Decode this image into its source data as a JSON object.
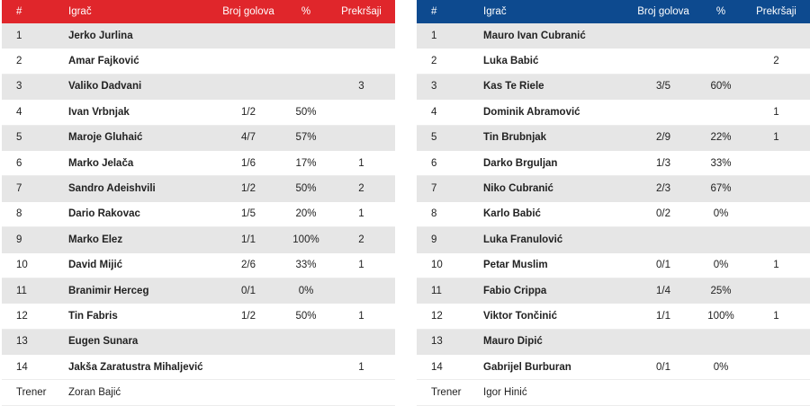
{
  "headers": {
    "num": "#",
    "player": "Igrač",
    "goals": "Broj golova",
    "pct": "%",
    "fouls": "Prekršaji"
  },
  "colors": {
    "home": "#e0262b",
    "away": "#0d4a8f",
    "shade": "#e6e6e6"
  },
  "home": {
    "rows": [
      {
        "num": "1",
        "name": "Jerko Jurlina",
        "goals": "",
        "pct": "",
        "fouls": ""
      },
      {
        "num": "2",
        "name": "Amar Fajković",
        "goals": "",
        "pct": "",
        "fouls": ""
      },
      {
        "num": "3",
        "name": "Valiko Dadvani",
        "goals": "",
        "pct": "",
        "fouls": "3"
      },
      {
        "num": "4",
        "name": "Ivan Vrbnjak",
        "goals": "1/2",
        "pct": "50%",
        "fouls": ""
      },
      {
        "num": "5",
        "name": "Maroje Gluhaić",
        "goals": "4/7",
        "pct": "57%",
        "fouls": ""
      },
      {
        "num": "6",
        "name": "Marko Jelača",
        "goals": "1/6",
        "pct": "17%",
        "fouls": "1"
      },
      {
        "num": "7",
        "name": "Sandro Adeishvili",
        "goals": "1/2",
        "pct": "50%",
        "fouls": "2"
      },
      {
        "num": "8",
        "name": "Dario Rakovac",
        "goals": "1/5",
        "pct": "20%",
        "fouls": "1"
      },
      {
        "num": "9",
        "name": "Marko Elez",
        "goals": "1/1",
        "pct": "100%",
        "fouls": "2"
      },
      {
        "num": "10",
        "name": "David Mijić",
        "goals": "2/6",
        "pct": "33%",
        "fouls": "1"
      },
      {
        "num": "11",
        "name": "Branimir Herceg",
        "goals": "0/1",
        "pct": "0%",
        "fouls": ""
      },
      {
        "num": "12",
        "name": "Tin Fabris",
        "goals": "1/2",
        "pct": "50%",
        "fouls": "1"
      },
      {
        "num": "13",
        "name": "Eugen Sunara",
        "goals": "",
        "pct": "",
        "fouls": ""
      },
      {
        "num": "14",
        "name": "Jakša Zaratustra Mihaljević",
        "goals": "",
        "pct": "",
        "fouls": "1"
      }
    ],
    "coach_label": "Trener",
    "coach_name": "Zoran Bajić"
  },
  "away": {
    "rows": [
      {
        "num": "1",
        "name": "Mauro Ivan Čubranić",
        "goals": "",
        "pct": "",
        "fouls": ""
      },
      {
        "num": "2",
        "name": "Luka Babić",
        "goals": "",
        "pct": "",
        "fouls": "2"
      },
      {
        "num": "3",
        "name": "Kas Te Riele",
        "goals": "3/5",
        "pct": "60%",
        "fouls": ""
      },
      {
        "num": "4",
        "name": "Dominik Abramović",
        "goals": "",
        "pct": "",
        "fouls": "1"
      },
      {
        "num": "5",
        "name": "Tin Brubnjak",
        "goals": "2/9",
        "pct": "22%",
        "fouls": "1"
      },
      {
        "num": "6",
        "name": "Darko Brguljan",
        "goals": "1/3",
        "pct": "33%",
        "fouls": ""
      },
      {
        "num": "7",
        "name": "Niko Čubranić",
        "goals": "2/3",
        "pct": "67%",
        "fouls": ""
      },
      {
        "num": "8",
        "name": "Karlo Babić",
        "goals": "0/2",
        "pct": "0%",
        "fouls": ""
      },
      {
        "num": "9",
        "name": "Luka Franulović",
        "goals": "",
        "pct": "",
        "fouls": ""
      },
      {
        "num": "10",
        "name": "Petar Muslim",
        "goals": "0/1",
        "pct": "0%",
        "fouls": "1"
      },
      {
        "num": "11",
        "name": "Fabio Crippa",
        "goals": "1/4",
        "pct": "25%",
        "fouls": ""
      },
      {
        "num": "12",
        "name": "Viktor Tončinić",
        "goals": "1/1",
        "pct": "100%",
        "fouls": "1"
      },
      {
        "num": "13",
        "name": "Mauro Dipić",
        "goals": "",
        "pct": "",
        "fouls": ""
      },
      {
        "num": "14",
        "name": "Gabrijel Burburan",
        "goals": "0/1",
        "pct": "0%",
        "fouls": ""
      }
    ],
    "coach_label": "Trener",
    "coach_name": "Igor Hinić"
  }
}
